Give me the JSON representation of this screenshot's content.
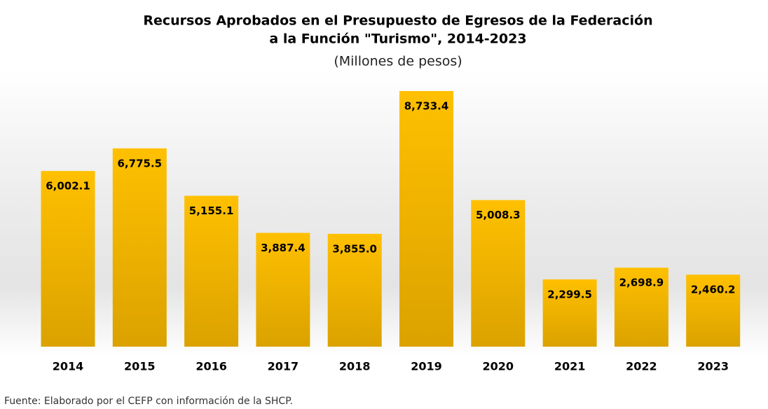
{
  "chart_data": {
    "type": "bar",
    "title": [
      "Recursos Aprobados en el Presupuesto de Egresos de la Federación",
      "a la Función \"Turismo\", 2014-2023"
    ],
    "subtitle": "(Millones de pesos)",
    "source": "Fuente: Elaborado por el CEFP con información de la SHCP.",
    "categories": [
      "2014",
      "2015",
      "2016",
      "2017",
      "2018",
      "2019",
      "2020",
      "2021",
      "2022",
      "2023"
    ],
    "values": [
      6002.1,
      6775.5,
      5155.1,
      3887.4,
      3855.0,
      8733.4,
      5008.3,
      2299.5,
      2698.9,
      2460.2
    ],
    "value_labels": [
      "6,002.1",
      "6,775.5",
      "5,155.1",
      "3,887.4",
      "3,855.0",
      "8,733.4",
      "5,008.3",
      "2,299.5",
      "2,698.9",
      "2,460.2"
    ],
    "color": "#ffc000"
  }
}
